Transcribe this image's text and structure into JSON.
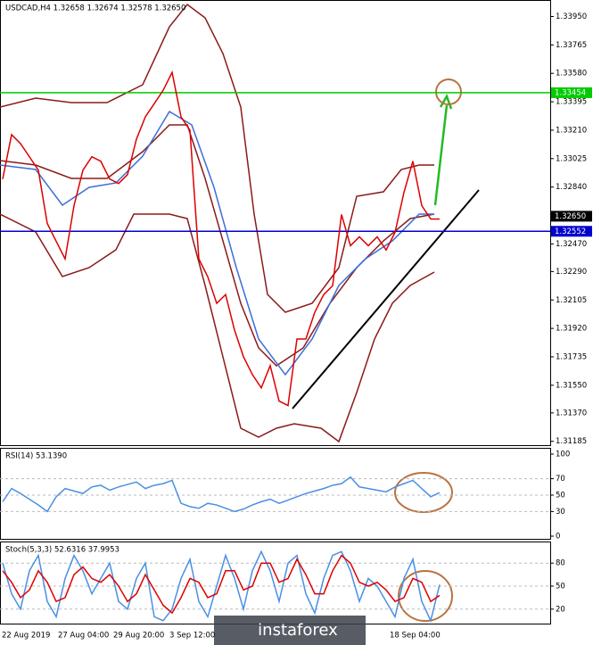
{
  "header": {
    "title": "USDCAD,H4 1.32658 1.32674 1.32578 1.32650"
  },
  "chart_data": [
    {
      "type": "line",
      "ylim": [
        1.3116,
        1.3404
      ],
      "yticks": [
        {
          "value": 1.3395,
          "label": "1.33950"
        },
        1.33765,
        {
          "value": 1.3358,
          "label": "1.33580"
        },
        1.33395,
        {
          "value": 1.3321,
          "label": "1.33210"
        },
        1.33025,
        {
          "value": 1.3284,
          "label": "1.32840"
        },
        {
          "value": 1.3247,
          "label": "1.32470"
        },
        {
          "value": 1.3229,
          "label": "1.32290"
        },
        1.32105,
        {
          "value": 1.3192,
          "label": "1.31920"
        },
        1.31735,
        {
          "value": 1.3155,
          "label": "1.31550"
        },
        {
          "value": 1.3137,
          "label": "1.31370"
        },
        1.31185
      ],
      "levels": [
        {
          "value": 1.33454,
          "color": "#00cc00",
          "line": true
        },
        {
          "value": 1.32552,
          "color": "#0000cc",
          "line": true
        },
        {
          "value": 1.3265,
          "label": "1.32650",
          "color": "#000000",
          "line": false
        }
      ],
      "series": [
        {
          "color": "#dd0000",
          "values": [
            1.32892,
            1.33181,
            1.33123,
            1.33037,
            1.3295,
            1.32603,
            1.32487,
            1.32372,
            1.32719,
            1.3295,
            1.33037,
            1.33008,
            1.32892,
            1.32863,
            1.32921,
            1.33152,
            1.33297,
            1.33383,
            1.3347,
            1.33586,
            1.33297,
            1.3321,
            1.32372,
            1.32256,
            1.32083,
            1.3214,
            1.31909,
            1.31736,
            1.3162,
            1.31533,
            1.31678,
            1.31447,
            1.31418,
            1.31851,
            1.31851,
            1.32025,
            1.3214,
            1.32198,
            1.32661,
            1.32458,
            1.32516,
            1.32458,
            1.32516,
            1.3243,
            1.32545,
            1.32805,
            1.33008,
            1.32719,
            1.32632,
            1.32632
          ]
        }
      ]
    },
    {
      "type": "line",
      "title": "RSI(14) 53.1390",
      "ylim": [
        0,
        100
      ],
      "yticks": [
        100,
        70,
        50,
        30,
        0
      ],
      "series": [
        {
          "color": "#4a90e2",
          "values": [
            42,
            58,
            52,
            45,
            38,
            30,
            48,
            58,
            55,
            52,
            60,
            62,
            56,
            60,
            63,
            66,
            58,
            62,
            64,
            68,
            40,
            36,
            34,
            40,
            38,
            34,
            30,
            33,
            38,
            42,
            45,
            40,
            44,
            48,
            52,
            55,
            58,
            62,
            64,
            72,
            60,
            58,
            56,
            54,
            60,
            64,
            68,
            58,
            48,
            53
          ]
        }
      ]
    },
    {
      "type": "line",
      "title": "Stoch(5,3,3) 52.6316 37.9953",
      "ylim": [
        0,
        100
      ],
      "yticks": [
        80,
        50,
        20
      ],
      "series": [
        {
          "color": "#4a90e2",
          "values": [
            80,
            40,
            20,
            70,
            90,
            30,
            10,
            60,
            90,
            70,
            40,
            60,
            80,
            30,
            20,
            60,
            80,
            10,
            5,
            20,
            60,
            85,
            30,
            10,
            50,
            90,
            60,
            20,
            70,
            95,
            70,
            30,
            80,
            90,
            40,
            15,
            60,
            90,
            95,
            70,
            30,
            60,
            50,
            30,
            10,
            60,
            85,
            30,
            5,
            52
          ]
        },
        {
          "color": "#dd0000",
          "values": [
            70,
            55,
            35,
            45,
            70,
            55,
            30,
            35,
            65,
            75,
            60,
            55,
            65,
            50,
            30,
            40,
            65,
            45,
            25,
            15,
            35,
            60,
            55,
            35,
            40,
            70,
            70,
            45,
            50,
            80,
            80,
            55,
            60,
            85,
            65,
            40,
            40,
            70,
            90,
            80,
            55,
            50,
            55,
            45,
            30,
            35,
            60,
            55,
            30,
            38
          ]
        }
      ]
    }
  ],
  "time_labels": [
    "22 Aug 2019",
    "27 Aug 04:00",
    "29 Aug 20:00",
    "3 Sep 12:00",
    "18 Sep 04:00"
  ],
  "watermark": "instaforex"
}
